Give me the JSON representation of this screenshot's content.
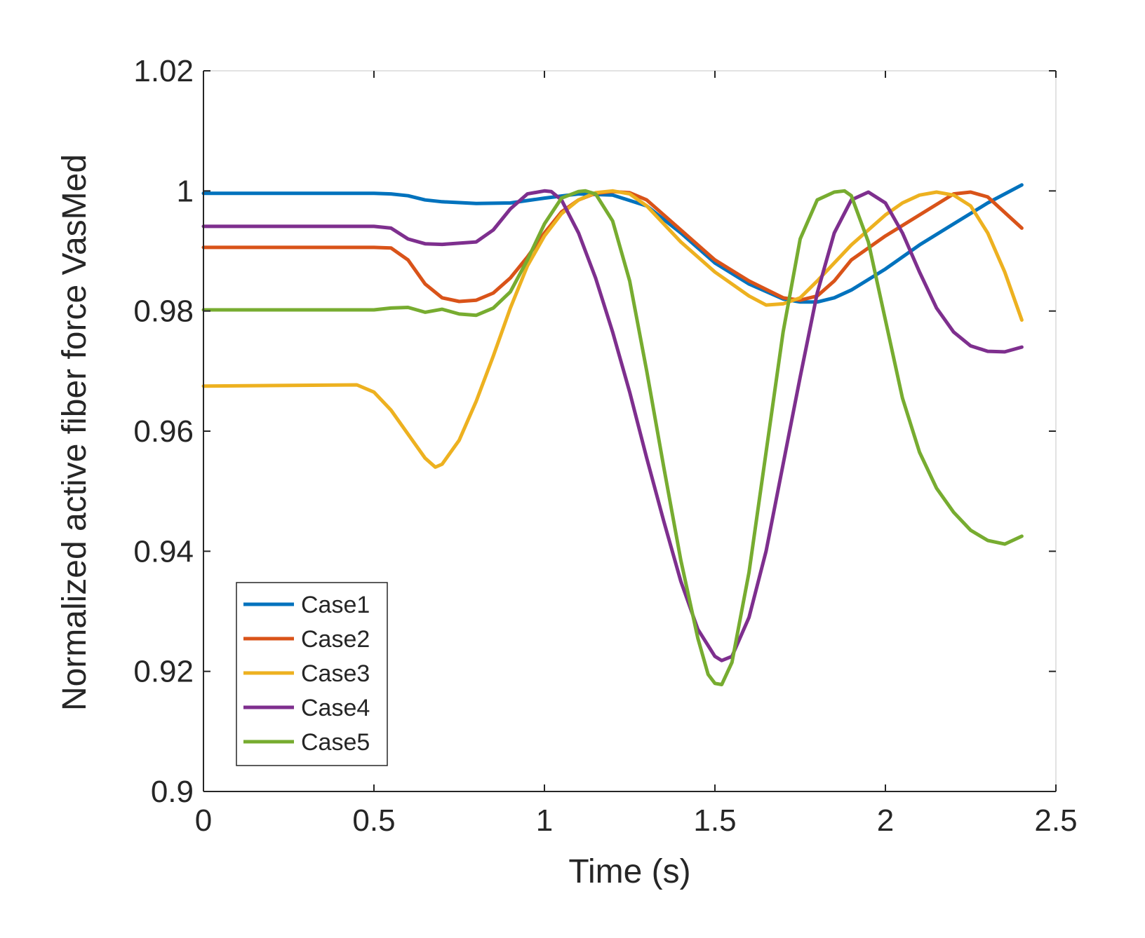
{
  "chart_data": {
    "type": "line",
    "title": "",
    "xlabel": "Time (s)",
    "ylabel": "Normalized active fiber force  VasMed",
    "xlim": [
      0,
      2.5
    ],
    "ylim": [
      0.9,
      1.02
    ],
    "xticks": [
      0,
      0.5,
      1,
      1.5,
      2,
      2.5
    ],
    "xtick_labels": [
      "0",
      "0.5",
      "1",
      "1.5",
      "2",
      "2.5"
    ],
    "yticks": [
      0.9,
      0.92,
      0.94,
      0.96,
      0.98,
      1,
      1.02
    ],
    "ytick_labels": [
      "0.9",
      "0.92",
      "0.94",
      "0.96",
      "0.98",
      "1",
      "1.02"
    ],
    "grid": false,
    "legend_position": "bottom-left",
    "series": [
      {
        "name": "Case1",
        "color": "#0072BD",
        "x": [
          0,
          0.5,
          0.55,
          0.6,
          0.65,
          0.7,
          0.8,
          0.9,
          1.0,
          1.1,
          1.2,
          1.3,
          1.4,
          1.5,
          1.6,
          1.7,
          1.75,
          1.8,
          1.85,
          1.9,
          2.0,
          2.1,
          2.2,
          2.3,
          2.4
        ],
        "y": [
          0.9996,
          0.9996,
          0.9995,
          0.9992,
          0.9985,
          0.9982,
          0.9979,
          0.998,
          0.9988,
          0.9995,
          0.9993,
          0.9975,
          0.993,
          0.988,
          0.9845,
          0.982,
          0.9815,
          0.9815,
          0.9822,
          0.9835,
          0.987,
          0.991,
          0.9945,
          0.998,
          1.001
        ]
      },
      {
        "name": "Case2",
        "color": "#D95319",
        "x": [
          0,
          0.5,
          0.55,
          0.6,
          0.65,
          0.7,
          0.75,
          0.8,
          0.85,
          0.9,
          0.95,
          1.0,
          1.05,
          1.1,
          1.15,
          1.2,
          1.25,
          1.3,
          1.4,
          1.5,
          1.6,
          1.7,
          1.75,
          1.8,
          1.85,
          1.9,
          2.0,
          2.1,
          2.2,
          2.25,
          2.3,
          2.4
        ],
        "y": [
          0.9906,
          0.9906,
          0.9905,
          0.9885,
          0.9845,
          0.9822,
          0.9816,
          0.9818,
          0.983,
          0.9855,
          0.989,
          0.993,
          0.9965,
          0.9985,
          0.9996,
          0.9999,
          0.9997,
          0.9985,
          0.9935,
          0.9885,
          0.985,
          0.9822,
          0.9818,
          0.9825,
          0.985,
          0.9885,
          0.9925,
          0.996,
          0.9995,
          0.9998,
          0.999,
          0.9938
        ]
      },
      {
        "name": "Case3",
        "color": "#EDB120",
        "x": [
          0,
          0.45,
          0.5,
          0.55,
          0.6,
          0.65,
          0.68,
          0.7,
          0.75,
          0.8,
          0.85,
          0.9,
          0.95,
          1.0,
          1.05,
          1.1,
          1.15,
          1.2,
          1.25,
          1.3,
          1.4,
          1.5,
          1.6,
          1.65,
          1.7,
          1.75,
          1.8,
          1.9,
          2.0,
          2.05,
          2.1,
          2.15,
          2.2,
          2.25,
          2.3,
          2.35,
          2.4
        ],
        "y": [
          0.9675,
          0.9677,
          0.9665,
          0.9635,
          0.9595,
          0.9555,
          0.954,
          0.9545,
          0.9585,
          0.965,
          0.9725,
          0.9805,
          0.9875,
          0.9925,
          0.9962,
          0.9985,
          0.9997,
          1.0,
          0.9995,
          0.9975,
          0.9915,
          0.9865,
          0.9825,
          0.981,
          0.9812,
          0.9822,
          0.985,
          0.991,
          0.996,
          0.998,
          0.9993,
          0.9998,
          0.9993,
          0.9975,
          0.993,
          0.9865,
          0.9785
        ]
      },
      {
        "name": "Case4",
        "color": "#7E2F8E",
        "x": [
          0,
          0.5,
          0.55,
          0.6,
          0.65,
          0.7,
          0.8,
          0.85,
          0.9,
          0.95,
          1.0,
          1.02,
          1.05,
          1.1,
          1.15,
          1.2,
          1.25,
          1.3,
          1.35,
          1.4,
          1.45,
          1.5,
          1.52,
          1.55,
          1.6,
          1.65,
          1.7,
          1.75,
          1.8,
          1.85,
          1.9,
          1.95,
          2.0,
          2.05,
          2.1,
          2.15,
          2.2,
          2.25,
          2.3,
          2.35,
          2.4
        ],
        "y": [
          0.9941,
          0.9941,
          0.9938,
          0.992,
          0.9912,
          0.9911,
          0.9915,
          0.9935,
          0.997,
          0.9995,
          1.0,
          0.9999,
          0.9985,
          0.993,
          0.9855,
          0.9765,
          0.9665,
          0.9555,
          0.945,
          0.935,
          0.927,
          0.9225,
          0.9218,
          0.9225,
          0.929,
          0.94,
          0.9545,
          0.969,
          0.983,
          0.993,
          0.9985,
          0.9998,
          0.998,
          0.993,
          0.9865,
          0.9805,
          0.9765,
          0.9742,
          0.9733,
          0.9732,
          0.974
        ]
      },
      {
        "name": "Case5",
        "color": "#77AC30",
        "x": [
          0,
          0.5,
          0.55,
          0.6,
          0.65,
          0.7,
          0.75,
          0.8,
          0.85,
          0.9,
          0.95,
          1.0,
          1.05,
          1.1,
          1.12,
          1.15,
          1.2,
          1.25,
          1.3,
          1.35,
          1.4,
          1.45,
          1.48,
          1.5,
          1.52,
          1.55,
          1.6,
          1.65,
          1.7,
          1.75,
          1.8,
          1.85,
          1.88,
          1.9,
          1.95,
          2.0,
          2.05,
          2.1,
          2.15,
          2.2,
          2.25,
          2.3,
          2.35,
          2.4
        ],
        "y": [
          0.9802,
          0.9802,
          0.9805,
          0.9806,
          0.9798,
          0.9803,
          0.9795,
          0.9793,
          0.9805,
          0.9832,
          0.9885,
          0.9945,
          0.9988,
          0.9999,
          1.0,
          0.9995,
          0.995,
          0.985,
          0.97,
          0.954,
          0.9385,
          0.9255,
          0.9195,
          0.918,
          0.9178,
          0.9215,
          0.9365,
          0.9565,
          0.9765,
          0.992,
          0.9985,
          0.9998,
          1.0,
          0.9992,
          0.9915,
          0.9785,
          0.9655,
          0.9565,
          0.9505,
          0.9465,
          0.9435,
          0.9418,
          0.9412,
          0.9425
        ]
      }
    ]
  }
}
